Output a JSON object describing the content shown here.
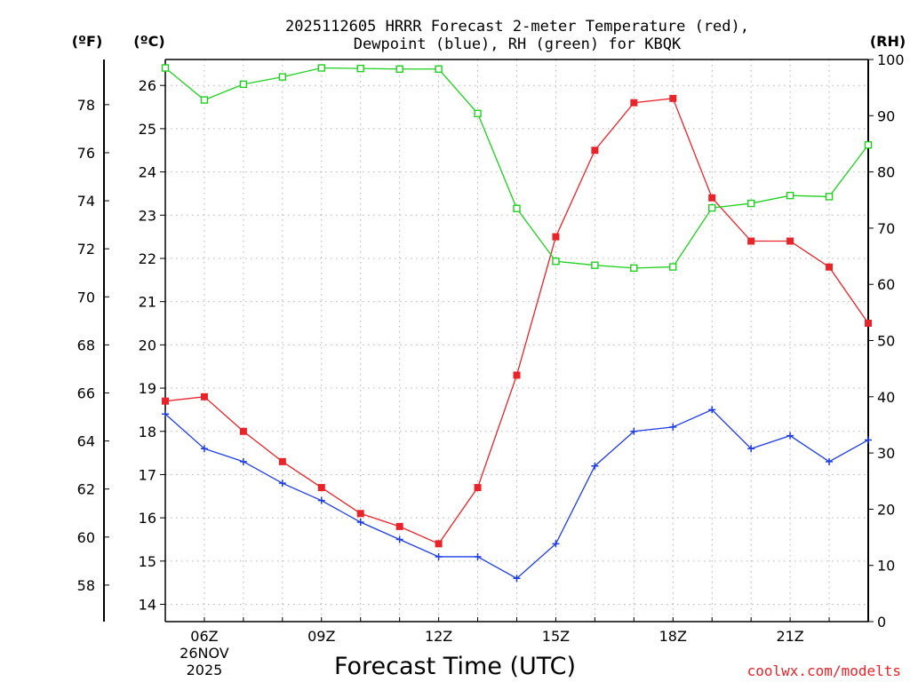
{
  "chart_data": {
    "type": "line",
    "title_line1": "2025112605 HRRR Forecast 2-meter Temperature (red),",
    "title_line2": "Dewpoint (blue), RH (green) for KBQK",
    "xlabel": "Forecast Time (UTC)",
    "credit": "coolwx.com/modelts",
    "units": {
      "fahrenheit": "(ºF)",
      "celsius": "(ºC)",
      "rh": "(RH)"
    },
    "x_hours": [
      5,
      6,
      7,
      8,
      9,
      10,
      11,
      12,
      13,
      14,
      15,
      16,
      17,
      18,
      19,
      20,
      21,
      22,
      23
    ],
    "x_ticks": [
      {
        "hour": 6,
        "label": "06Z",
        "date1": "26NOV",
        "date2": "2025"
      },
      {
        "hour": 9,
        "label": "09Z"
      },
      {
        "hour": 12,
        "label": "12Z"
      },
      {
        "hour": 15,
        "label": "15Z"
      },
      {
        "hour": 18,
        "label": "18Z"
      },
      {
        "hour": 21,
        "label": "21Z"
      }
    ],
    "x_range": [
      5,
      23
    ],
    "celsius_range": [
      13.6,
      26.6
    ],
    "celsius_ticks": [
      "14",
      "15",
      "16",
      "17",
      "18",
      "19",
      "20",
      "21",
      "22",
      "23",
      "24",
      "25",
      "26"
    ],
    "fahrenheit_ticks": [
      "58",
      "60",
      "62",
      "64",
      "66",
      "68",
      "70",
      "72",
      "74",
      "76",
      "78"
    ],
    "rh_range": [
      0,
      100
    ],
    "rh_ticks": [
      "0",
      "10",
      "20",
      "30",
      "40",
      "50",
      "60",
      "70",
      "80",
      "90",
      "100"
    ],
    "grid": true,
    "colors": {
      "temperature": "#e8242a",
      "dewpoint": "#1e3ce6",
      "rh": "#1fd11f",
      "grid": "#b4b4b4"
    },
    "series": [
      {
        "name": "Temperature",
        "unit": "C",
        "marker": "filled-square",
        "values": [
          18.7,
          18.8,
          18.0,
          17.3,
          16.7,
          16.1,
          15.8,
          15.4,
          16.7,
          19.3,
          22.5,
          24.5,
          25.6,
          25.7,
          23.4,
          22.4,
          22.4,
          21.8,
          20.5
        ]
      },
      {
        "name": "Dewpoint",
        "unit": "C",
        "marker": "plus",
        "values": [
          18.4,
          17.6,
          17.3,
          16.8,
          16.4,
          15.9,
          15.5,
          15.1,
          15.1,
          14.6,
          15.4,
          17.2,
          18.0,
          18.1,
          18.5,
          17.6,
          17.9,
          17.3,
          17.8
        ]
      },
      {
        "name": "RH",
        "unit": "%",
        "marker": "open-square",
        "values": [
          98.5,
          92.8,
          95.6,
          96.9,
          98.5,
          98.4,
          98.3,
          98.3,
          90.4,
          73.5,
          64.1,
          63.4,
          62.9,
          63.1,
          73.6,
          74.4,
          75.8,
          75.6,
          84.8
        ]
      }
    ]
  }
}
